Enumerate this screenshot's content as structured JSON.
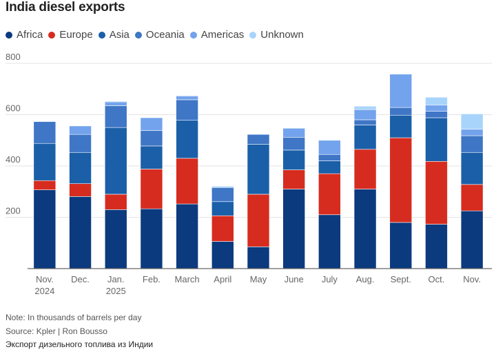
{
  "chart_data": {
    "type": "bar",
    "stacked": true,
    "title": "India diesel exports",
    "categories": [
      [
        "Nov.",
        "2024"
      ],
      [
        "Dec."
      ],
      [
        "Jan.",
        "2025"
      ],
      [
        "Feb."
      ],
      [
        "March"
      ],
      [
        "April"
      ],
      [
        "May"
      ],
      [
        "June"
      ],
      [
        "July"
      ],
      [
        "Aug."
      ],
      [
        "Sept."
      ],
      [
        "Oct."
      ],
      [
        "Nov."
      ]
    ],
    "series": [
      {
        "name": "Africa",
        "color": "#0b3a7e",
        "values": [
          307,
          281,
          230,
          233,
          252,
          106,
          85,
          310,
          210,
          310,
          180,
          173,
          225
        ]
      },
      {
        "name": "Europe",
        "color": "#d62c1f",
        "values": [
          36,
          50,
          60,
          155,
          178,
          100,
          205,
          75,
          160,
          155,
          330,
          245,
          103
        ]
      },
      {
        "name": "Asia",
        "color": "#1b5fa8",
        "values": [
          145,
          122,
          260,
          90,
          148,
          55,
          195,
          77,
          50,
          95,
          88,
          170,
          125
        ]
      },
      {
        "name": "Oceania",
        "color": "#3f76c6",
        "values": [
          85,
          70,
          85,
          60,
          80,
          55,
          38,
          50,
          25,
          20,
          30,
          25,
          65
        ]
      },
      {
        "name": "Americas",
        "color": "#73a3ec",
        "values": [
          0,
          33,
          15,
          50,
          15,
          0,
          0,
          35,
          55,
          40,
          130,
          25,
          25
        ]
      },
      {
        "name": "Unknown",
        "color": "#a8d4fb",
        "values": [
          0,
          0,
          3,
          0,
          2,
          5,
          2,
          0,
          2,
          13,
          0,
          30,
          60
        ]
      }
    ],
    "ylim": [
      0,
      800
    ],
    "yticks": [
      0,
      200,
      400,
      600,
      800
    ],
    "ytick_labels": [
      "",
      "200",
      "400",
      "600",
      "800"
    ],
    "xlabel": "",
    "ylabel": "",
    "grid": true,
    "legend": "top-left"
  },
  "notes": {
    "units": "Note: In thousands of barrels per day",
    "source": "Source: Kpler | Ron Bousso",
    "caption": "Экспорт дизельного топлива из Индии"
  }
}
